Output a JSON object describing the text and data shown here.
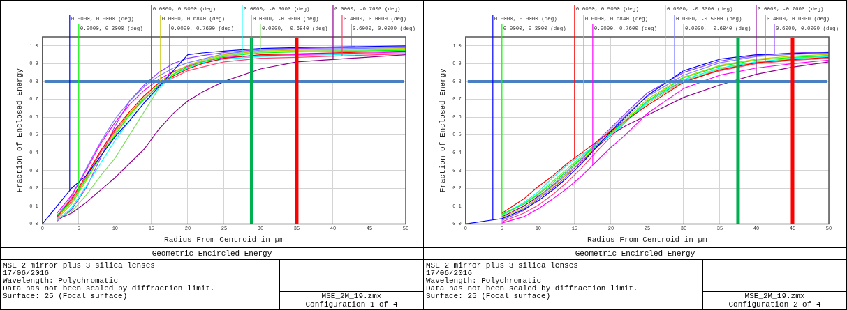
{
  "chart_data": [
    {
      "type": "line",
      "title": "Geometric Encircled Energy",
      "xlabel": "Radius From Centroid in µm",
      "ylabel": "Fraction of Enclosed Energy",
      "xlim": [
        0,
        50
      ],
      "xticks": [
        0,
        5,
        10,
        15,
        20,
        25,
        30,
        35,
        40,
        45,
        50
      ],
      "ylim": [
        0,
        1.05
      ],
      "yticks": [
        {
          "value": 0,
          "label": "0.0"
        },
        {
          "value": 0.1,
          "label": "0.1"
        },
        {
          "value": 0.2,
          "label": "0.2"
        },
        {
          "value": 0.3,
          "label": "0.3"
        },
        {
          "value": 0.4,
          "label": "0.4"
        },
        {
          "value": 0.5,
          "label": "0.5"
        },
        {
          "value": 0.6,
          "label": "0.6"
        },
        {
          "value": 0.7,
          "label": "0.7"
        },
        {
          "value": 0.8,
          "label": "0.8"
        },
        {
          "value": 0.9,
          "label": "0.9"
        },
        {
          "value": 1.0,
          "label": "1.0"
        }
      ],
      "grid": true,
      "legend": "top",
      "marker": "none",
      "line_style": "solid",
      "x": [
        0,
        2,
        4,
        6,
        8,
        10,
        12,
        14,
        16,
        18,
        20,
        22,
        25,
        30,
        35,
        50
      ],
      "series": [
        {
          "name": "0.0000, 0.0000 (deg)",
          "color": "#0000ff",
          "values": [
            0,
            0.1,
            0.2,
            0.27,
            0.38,
            0.49,
            0.58,
            0.68,
            0.77,
            0.86,
            0.95,
            0.96,
            0.97,
            0.985,
            0.99,
            1.0
          ]
        },
        {
          "name": "0.0000, 0.3000 (deg)",
          "color": "#00ff00",
          "values": [
            null,
            0.05,
            0.12,
            0.25,
            0.38,
            0.5,
            0.61,
            0.7,
            0.78,
            0.84,
            0.88,
            0.91,
            0.94,
            0.96,
            0.965,
            0.975
          ]
        },
        {
          "name": "0.0000, 0.5000 (deg)",
          "color": "#ff0000",
          "values": [
            null,
            0.04,
            0.14,
            0.27,
            0.41,
            0.53,
            0.63,
            0.72,
            0.79,
            0.83,
            0.87,
            0.9,
            0.93,
            0.95,
            0.955,
            0.97
          ]
        },
        {
          "name": "0.0000, 0.6840 (deg)",
          "color": "#c8c800",
          "values": [
            null,
            0.03,
            0.11,
            0.24,
            0.38,
            0.51,
            0.62,
            0.71,
            0.795,
            0.85,
            0.89,
            0.92,
            0.95,
            0.97,
            0.975,
            0.985
          ]
        },
        {
          "name": "0.0000, 0.7600 (deg)",
          "color": "#ff00ff",
          "values": [
            null,
            0.06,
            0.16,
            0.3,
            0.45,
            0.57,
            0.67,
            0.75,
            0.81,
            0.855,
            0.885,
            0.91,
            0.935,
            0.945,
            0.95,
            0.965
          ]
        },
        {
          "name": "0.0000, -0.3000 (deg)",
          "color": "#00ffff",
          "values": [
            null,
            0.02,
            0.09,
            0.21,
            0.34,
            0.47,
            0.58,
            0.68,
            0.765,
            0.83,
            0.875,
            0.905,
            0.925,
            0.94,
            0.945,
            0.96
          ]
        },
        {
          "name": "0.0000, -0.5000 (deg)",
          "color": "#8080ff",
          "values": [
            null,
            0.045,
            0.15,
            0.31,
            0.46,
            0.59,
            0.69,
            0.77,
            0.83,
            0.875,
            0.905,
            0.925,
            0.955,
            0.975,
            0.98,
            0.99
          ]
        },
        {
          "name": "0.0000, -0.6840 (deg)",
          "color": "#80e060",
          "values": [
            null,
            0.03,
            0.07,
            0.16,
            0.27,
            0.37,
            0.5,
            0.63,
            0.76,
            0.84,
            0.89,
            0.915,
            0.945,
            0.965,
            0.97,
            0.98
          ]
        },
        {
          "name": "0.0000, -0.7600 (deg)",
          "color": "#900090",
          "values": [
            null,
            0.025,
            0.06,
            0.12,
            0.19,
            0.26,
            0.34,
            0.42,
            0.53,
            0.62,
            0.69,
            0.74,
            0.8,
            0.87,
            0.91,
            0.95
          ]
        },
        {
          "name": "0.4000, 0.0000 (deg)",
          "color": "#ff4070",
          "values": [
            null,
            0.035,
            0.13,
            0.26,
            0.4,
            0.52,
            0.62,
            0.7,
            0.775,
            0.82,
            0.86,
            0.88,
            0.91,
            0.93,
            0.935,
            0.955
          ]
        },
        {
          "name": "0.6000, 0.0000 (deg)",
          "color": "#9040ff",
          "values": [
            null,
            0.015,
            0.08,
            0.2,
            0.37,
            0.55,
            0.69,
            0.78,
            0.85,
            0.9,
            0.93,
            0.945,
            0.962,
            0.98,
            0.985,
            0.995
          ]
        }
      ],
      "ref_lines": [
        {
          "axis": "y",
          "value": 0.8,
          "color": "#4a7fc1"
        },
        {
          "axis": "x",
          "value": 28.8,
          "color": "#00b050"
        },
        {
          "axis": "x",
          "value": 35,
          "color": "#ff0000"
        }
      ],
      "annotations": [
        "MSE 2 mirror plus 3 silica lenses",
        "17/06/2016",
        "Wavelength: Polychromatic",
        "Data has not been scaled by diffraction limit.",
        "Surface: 25 (Focal surface)",
        "MSE_2M_19.zmx",
        "Configuration 1 of 4"
      ]
    },
    {
      "type": "line",
      "title": "Geometric Encircled Energy",
      "xlabel": "Radius From Centroid in µm",
      "ylabel": "Fraction of Enclosed Energy",
      "xlim": [
        0,
        50
      ],
      "xticks": [
        0,
        5,
        10,
        15,
        20,
        25,
        30,
        35,
        40,
        45,
        50
      ],
      "ylim": [
        0,
        1.05
      ],
      "yticks": [
        {
          "value": 0,
          "label": "0.0"
        },
        {
          "value": 0.1,
          "label": "0.1"
        },
        {
          "value": 0.2,
          "label": "0.2"
        },
        {
          "value": 0.3,
          "label": "0.3"
        },
        {
          "value": 0.4,
          "label": "0.4"
        },
        {
          "value": 0.5,
          "label": "0.5"
        },
        {
          "value": 0.6,
          "label": "0.6"
        },
        {
          "value": 0.7,
          "label": "0.7"
        },
        {
          "value": 0.8,
          "label": "0.8"
        },
        {
          "value": 0.9,
          "label": "0.9"
        },
        {
          "value": 1.0,
          "label": "1.0"
        }
      ],
      "grid": true,
      "legend": "top",
      "marker": "none",
      "line_style": "solid",
      "x": [
        0,
        5,
        8,
        10,
        12,
        14,
        16,
        18,
        20,
        22,
        25,
        30,
        35,
        40,
        45,
        50
      ],
      "series": [
        {
          "name": "0.0000, 0.0000 (deg)",
          "color": "#0000ff",
          "values": [
            0,
            0.03,
            0.08,
            0.13,
            0.19,
            0.26,
            0.34,
            0.43,
            0.52,
            0.6,
            0.72,
            0.86,
            0.925,
            0.95,
            0.957,
            0.962
          ]
        },
        {
          "name": "0.0000, 0.3000 (deg)",
          "color": "#00ff00",
          "values": [
            null,
            0.055,
            0.11,
            0.165,
            0.23,
            0.3,
            0.37,
            0.44,
            0.51,
            0.58,
            0.69,
            0.82,
            0.885,
            0.92,
            0.935,
            0.945
          ]
        },
        {
          "name": "0.0000, 0.5000 (deg)",
          "color": "#ff0000",
          "values": [
            null,
            0.06,
            0.14,
            0.21,
            0.27,
            0.34,
            0.4,
            0.46,
            0.52,
            0.58,
            0.665,
            0.795,
            0.865,
            0.905,
            0.922,
            0.935
          ]
        },
        {
          "name": "0.0000, 0.6840 (deg)",
          "color": "#c8c800",
          "values": [
            null,
            0.035,
            0.09,
            0.145,
            0.21,
            0.28,
            0.355,
            0.435,
            0.515,
            0.59,
            0.7,
            0.825,
            0.89,
            0.925,
            0.942,
            0.952
          ]
        },
        {
          "name": "0.0000, 0.7600 (deg)",
          "color": "#ff00ff",
          "values": [
            null,
            0.005,
            0.04,
            0.085,
            0.14,
            0.2,
            0.27,
            0.35,
            0.43,
            0.5,
            0.62,
            0.76,
            0.835,
            0.875,
            0.9,
            0.92
          ]
        },
        {
          "name": "0.0000, -0.3000 (deg)",
          "color": "#00ffff",
          "values": [
            null,
            0.05,
            0.12,
            0.18,
            0.26,
            0.33,
            0.39,
            0.44,
            0.5,
            0.57,
            0.685,
            0.81,
            0.875,
            0.91,
            0.93,
            0.94
          ]
        },
        {
          "name": "0.0000, -0.5000 (deg)",
          "color": "#8080ff",
          "values": [
            null,
            0.025,
            0.085,
            0.15,
            0.22,
            0.29,
            0.37,
            0.45,
            0.53,
            0.61,
            0.715,
            0.835,
            0.905,
            0.94,
            0.952,
            0.958
          ]
        },
        {
          "name": "0.0000, -0.6840 (deg)",
          "color": "#80e060",
          "values": [
            null,
            0.045,
            0.115,
            0.17,
            0.24,
            0.31,
            0.38,
            0.45,
            0.505,
            0.575,
            0.675,
            0.8,
            0.87,
            0.905,
            0.925,
            0.948
          ]
        },
        {
          "name": "0.0000, -0.7600 (deg)",
          "color": "#900090",
          "values": [
            null,
            0.04,
            0.1,
            0.155,
            0.215,
            0.28,
            0.35,
            0.43,
            0.5,
            0.55,
            0.61,
            0.71,
            0.78,
            0.84,
            0.88,
            0.91
          ]
        },
        {
          "name": "0.4000, 0.0000 (deg)",
          "color": "#ff4070",
          "values": [
            null,
            0.012,
            0.06,
            0.105,
            0.165,
            0.235,
            0.315,
            0.405,
            0.49,
            0.57,
            0.685,
            0.805,
            0.86,
            0.9,
            0.918,
            0.93
          ]
        },
        {
          "name": "0.6000, 0.0000 (deg)",
          "color": "#9040ff",
          "values": [
            null,
            0.02,
            0.075,
            0.14,
            0.2,
            0.27,
            0.36,
            0.46,
            0.54,
            0.62,
            0.735,
            0.85,
            0.915,
            0.945,
            0.96,
            0.966
          ]
        }
      ],
      "ref_lines": [
        {
          "axis": "y",
          "value": 0.8,
          "color": "#4a7fc1"
        },
        {
          "axis": "x",
          "value": 37.5,
          "color": "#00b050"
        },
        {
          "axis": "x",
          "value": 45,
          "color": "#ff0000"
        }
      ],
      "annotations": [
        "MSE 2 mirror plus 3 silica lenses",
        "17/06/2016",
        "Wavelength: Polychromatic",
        "Data has not been scaled by diffraction limit.",
        "Surface: 25 (Focal surface)",
        "MSE_2M_19.zmx",
        "Configuration 2 of 4"
      ]
    }
  ]
}
